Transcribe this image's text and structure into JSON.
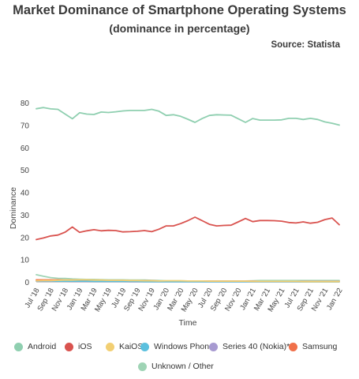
{
  "chart_data": {
    "type": "line",
    "title": "Market Dominance of Smartphone Operating Systems",
    "subtitle": "(dominance in percentage)",
    "source": "Source: Statista",
    "xlabel": "Time",
    "ylabel": "Dominance",
    "ylim": [
      0,
      80
    ],
    "yticks": [
      0,
      10,
      20,
      30,
      40,
      50,
      60,
      70,
      80
    ],
    "grid": false,
    "legend_position": "bottom",
    "x": [
      "Jul '18",
      "Aug '18",
      "Sep '18",
      "Oct '18",
      "Nov '18",
      "Dec '18",
      "Jan '19",
      "Feb '19",
      "Mar '19",
      "Apr '19",
      "May '19",
      "Jun '19",
      "Jul '19",
      "Aug '19",
      "Sep '19",
      "Oct '19",
      "Nov '19",
      "Dec '19",
      "Jan '20",
      "Feb '20",
      "Mar '20",
      "Apr '20",
      "May '20",
      "Jun '20",
      "Jul '20",
      "Aug '20",
      "Sep '20",
      "Oct '20",
      "Nov '20",
      "Dec '20",
      "Jan '21",
      "Feb '21",
      "Mar '21",
      "Apr '21",
      "May '21",
      "Jun '21",
      "Jul '21",
      "Aug '21",
      "Sep '21",
      "Oct '21",
      "Nov '21",
      "Dec '21",
      "Jan '22"
    ],
    "xtick_labels": [
      "Jul '18",
      "Sep '18",
      "Nov '18",
      "Jan '19",
      "Mar '19",
      "May '19",
      "Jul '19",
      "Sep '19",
      "Nov '19",
      "Jan '20",
      "Mar '20",
      "May '20",
      "Jul '20",
      "Sep '20",
      "Nov '20",
      "Jan '21",
      "Mar '21",
      "May '21",
      "Jul '21",
      "Sep '21",
      "Nov '21",
      "Jan '22"
    ],
    "series": [
      {
        "name": "Android",
        "color": "#8fcfb0",
        "values": [
          77.3,
          77.8,
          77.2,
          77.0,
          74.9,
          72.8,
          75.5,
          74.9,
          74.7,
          75.8,
          75.6,
          75.9,
          76.3,
          76.5,
          76.5,
          76.5,
          77.0,
          76.2,
          74.3,
          74.6,
          73.9,
          72.6,
          71.2,
          72.9,
          74.3,
          74.6,
          74.5,
          74.4,
          72.8,
          71.2,
          72.9,
          72.2,
          72.2,
          72.2,
          72.3,
          73.0,
          73.0,
          72.5,
          73.0,
          72.5,
          71.4,
          70.8,
          70.0
        ]
      },
      {
        "name": "iOS",
        "color": "#d9534f",
        "values": [
          18.9,
          19.6,
          20.5,
          20.9,
          22.2,
          24.5,
          22.1,
          22.8,
          23.3,
          22.8,
          23.0,
          22.9,
          22.3,
          22.4,
          22.6,
          22.9,
          22.4,
          23.5,
          25.0,
          25.0,
          26.0,
          27.3,
          28.9,
          27.3,
          25.7,
          25.0,
          25.2,
          25.3,
          26.8,
          28.3,
          26.9,
          27.4,
          27.4,
          27.3,
          27.1,
          26.5,
          26.3,
          26.8,
          26.2,
          26.6,
          27.8,
          28.5,
          25.5
        ]
      },
      {
        "name": "KaiOS",
        "color": "#f2cf73",
        "values": [
          0.5,
          0.6,
          0.6,
          0.7,
          0.8,
          0.8,
          0.9,
          0.9,
          0.8,
          0.8,
          0.7,
          0.7,
          0.7,
          0.6,
          0.6,
          0.5,
          0.5,
          0.4,
          0.5,
          0.5,
          0.5,
          0.4,
          0.4,
          0.4,
          0.3,
          0.3,
          0.3,
          0.3,
          0.3,
          0.3,
          0.2,
          0.2,
          0.2,
          0.2,
          0.2,
          0.2,
          0.2,
          0.1,
          0.1,
          0.1,
          0.1,
          0.1,
          0.1
        ]
      },
      {
        "name": "Windows Phone",
        "color": "#5bc0de",
        "values": [
          0.4,
          0.4,
          0.4,
          0.3,
          0.3,
          0.3,
          0.3,
          0.3,
          0.2,
          0.2,
          0.2,
          0.2,
          0.2,
          0.2,
          0.2,
          0.1,
          0.1,
          0.1,
          0.1,
          0.1,
          0.1,
          0.1,
          0.1,
          0.1,
          0.1,
          0.1,
          0.1,
          0.1,
          0.1,
          0.1,
          0.1,
          0.1,
          0.1,
          0.1,
          0.1,
          0.1,
          0.1,
          0.0,
          0.0,
          0.0,
          0.0,
          0.0,
          0.0
        ]
      },
      {
        "name": "Series 40 (Nokia)*",
        "color": "#a79ad1",
        "values": [
          0.3,
          0.3,
          0.3,
          0.3,
          0.3,
          0.2,
          0.2,
          0.2,
          0.2,
          0.2,
          0.2,
          0.2,
          0.2,
          0.1,
          0.1,
          0.1,
          0.1,
          0.1,
          0.1,
          0.1,
          0.1,
          0.1,
          0.1,
          0.1,
          0.1,
          0.1,
          0.1,
          0.1,
          0.1,
          0.1,
          0.1,
          0.1,
          0.1,
          0.1,
          0.1,
          0.1,
          0.1,
          0.1,
          0.1,
          0.1,
          0.1,
          0.1,
          0.1
        ]
      },
      {
        "name": "Samsung",
        "color": "#f0704a",
        "values": [
          0.9,
          0.9,
          0.9,
          0.9,
          0.8,
          0.8,
          0.8,
          0.7,
          0.7,
          0.7,
          0.6,
          0.6,
          0.6,
          0.5,
          0.5,
          0.5,
          0.5,
          0.4,
          0.4,
          0.4,
          0.4,
          0.4,
          0.3,
          0.3,
          0.3,
          0.3,
          0.3,
          0.3,
          0.3,
          0.3,
          0.3,
          0.2,
          0.2,
          0.2,
          0.2,
          0.2,
          0.2,
          0.2,
          0.2,
          0.2,
          0.2,
          0.2,
          0.2
        ]
      },
      {
        "name": "Unknown / Other",
        "color": "#9fd4b5",
        "values": [
          3.2,
          2.5,
          1.9,
          1.6,
          1.5,
          1.3,
          1.2,
          1.1,
          1.1,
          1.0,
          0.9,
          0.9,
          0.9,
          0.8,
          0.8,
          0.8,
          0.7,
          0.6,
          0.5,
          0.5,
          0.5,
          0.4,
          0.4,
          0.4,
          0.4,
          0.4,
          0.4,
          0.4,
          0.4,
          0.4,
          0.5,
          0.6,
          0.6,
          0.6,
          0.6,
          0.6,
          0.6,
          0.6,
          0.6,
          0.6,
          0.6,
          0.6,
          0.6
        ]
      }
    ]
  }
}
